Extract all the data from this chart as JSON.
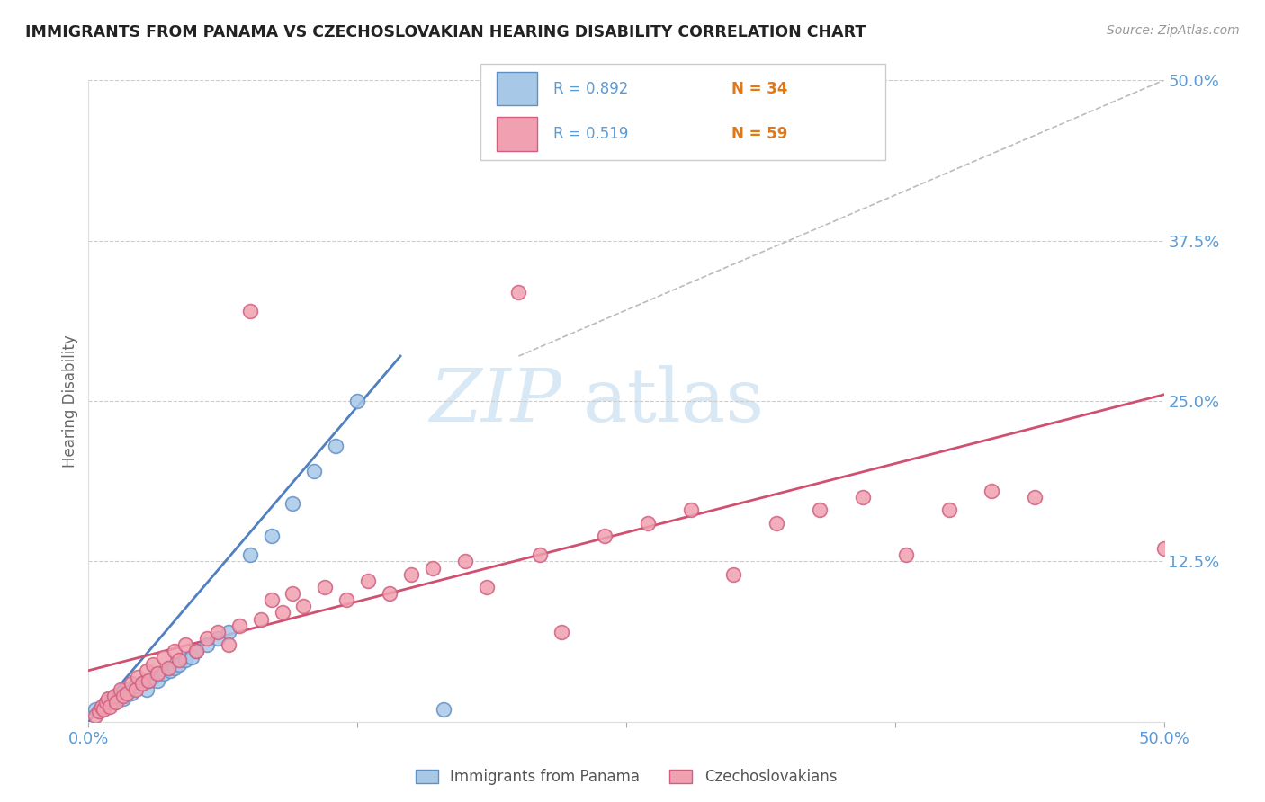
{
  "title": "IMMIGRANTS FROM PANAMA VS CZECHOSLOVAKIAN HEARING DISABILITY CORRELATION CHART",
  "source": "Source: ZipAtlas.com",
  "ylabel": "Hearing Disability",
  "yticks": [
    0.0,
    0.125,
    0.25,
    0.375,
    0.5
  ],
  "ytick_labels": [
    "",
    "12.5%",
    "25.0%",
    "37.5%",
    "50.0%"
  ],
  "xlim": [
    0.0,
    0.5
  ],
  "ylim": [
    0.0,
    0.5
  ],
  "legend_R_blue": "R = 0.892",
  "legend_N_blue": "N = 34",
  "legend_R_pink": "R = 0.519",
  "legend_N_pink": "N = 59",
  "legend_label_blue": "Immigrants from Panama",
  "legend_label_pink": "Czechoslovakians",
  "color_blue_fill": "#A8C8E8",
  "color_blue_edge": "#6090C8",
  "color_pink_fill": "#F0A0B0",
  "color_pink_edge": "#D06080",
  "color_blue_line": "#5080C0",
  "color_pink_line": "#D05070",
  "color_ref_line": "#BBBBBB",
  "color_axis_label": "#5B9BD5",
  "color_title": "#222222",
  "color_source": "#999999",
  "color_grid": "#CCCCCC",
  "watermark_color": "#C8DFF0",
  "blue_points": [
    [
      0.003,
      0.01
    ],
    [
      0.005,
      0.008
    ],
    [
      0.007,
      0.012
    ],
    [
      0.008,
      0.015
    ],
    [
      0.01,
      0.018
    ],
    [
      0.012,
      0.015
    ],
    [
      0.013,
      0.02
    ],
    [
      0.015,
      0.022
    ],
    [
      0.016,
      0.018
    ],
    [
      0.018,
      0.025
    ],
    [
      0.02,
      0.022
    ],
    [
      0.022,
      0.028
    ],
    [
      0.025,
      0.03
    ],
    [
      0.027,
      0.025
    ],
    [
      0.028,
      0.032
    ],
    [
      0.03,
      0.035
    ],
    [
      0.032,
      0.032
    ],
    [
      0.035,
      0.038
    ],
    [
      0.038,
      0.04
    ],
    [
      0.04,
      0.042
    ],
    [
      0.042,
      0.045
    ],
    [
      0.045,
      0.048
    ],
    [
      0.048,
      0.05
    ],
    [
      0.05,
      0.055
    ],
    [
      0.055,
      0.06
    ],
    [
      0.06,
      0.065
    ],
    [
      0.065,
      0.07
    ],
    [
      0.075,
      0.13
    ],
    [
      0.085,
      0.145
    ],
    [
      0.095,
      0.17
    ],
    [
      0.105,
      0.195
    ],
    [
      0.115,
      0.215
    ],
    [
      0.125,
      0.25
    ],
    [
      0.165,
      0.01
    ]
  ],
  "pink_points": [
    [
      0.003,
      0.005
    ],
    [
      0.005,
      0.008
    ],
    [
      0.006,
      0.012
    ],
    [
      0.007,
      0.01
    ],
    [
      0.008,
      0.015
    ],
    [
      0.009,
      0.018
    ],
    [
      0.01,
      0.012
    ],
    [
      0.012,
      0.02
    ],
    [
      0.013,
      0.015
    ],
    [
      0.015,
      0.025
    ],
    [
      0.016,
      0.02
    ],
    [
      0.018,
      0.022
    ],
    [
      0.02,
      0.03
    ],
    [
      0.022,
      0.025
    ],
    [
      0.023,
      0.035
    ],
    [
      0.025,
      0.03
    ],
    [
      0.027,
      0.04
    ],
    [
      0.028,
      0.032
    ],
    [
      0.03,
      0.045
    ],
    [
      0.032,
      0.038
    ],
    [
      0.035,
      0.05
    ],
    [
      0.037,
      0.042
    ],
    [
      0.04,
      0.055
    ],
    [
      0.042,
      0.048
    ],
    [
      0.045,
      0.06
    ],
    [
      0.05,
      0.055
    ],
    [
      0.055,
      0.065
    ],
    [
      0.06,
      0.07
    ],
    [
      0.065,
      0.06
    ],
    [
      0.07,
      0.075
    ],
    [
      0.075,
      0.32
    ],
    [
      0.08,
      0.08
    ],
    [
      0.085,
      0.095
    ],
    [
      0.09,
      0.085
    ],
    [
      0.095,
      0.1
    ],
    [
      0.1,
      0.09
    ],
    [
      0.11,
      0.105
    ],
    [
      0.12,
      0.095
    ],
    [
      0.13,
      0.11
    ],
    [
      0.14,
      0.1
    ],
    [
      0.15,
      0.115
    ],
    [
      0.16,
      0.12
    ],
    [
      0.175,
      0.125
    ],
    [
      0.185,
      0.105
    ],
    [
      0.2,
      0.335
    ],
    [
      0.21,
      0.13
    ],
    [
      0.22,
      0.07
    ],
    [
      0.24,
      0.145
    ],
    [
      0.26,
      0.155
    ],
    [
      0.28,
      0.165
    ],
    [
      0.3,
      0.115
    ],
    [
      0.32,
      0.155
    ],
    [
      0.34,
      0.165
    ],
    [
      0.36,
      0.175
    ],
    [
      0.38,
      0.13
    ],
    [
      0.4,
      0.165
    ],
    [
      0.42,
      0.18
    ],
    [
      0.44,
      0.175
    ],
    [
      0.5,
      0.135
    ]
  ],
  "blue_line_x": [
    0.0,
    0.145
  ],
  "blue_line_y": [
    0.0,
    0.285
  ],
  "pink_line_x": [
    0.0,
    0.5
  ],
  "pink_line_y": [
    0.04,
    0.255
  ],
  "ref_line_x": [
    0.2,
    0.5
  ],
  "ref_line_y": [
    0.285,
    0.5
  ]
}
